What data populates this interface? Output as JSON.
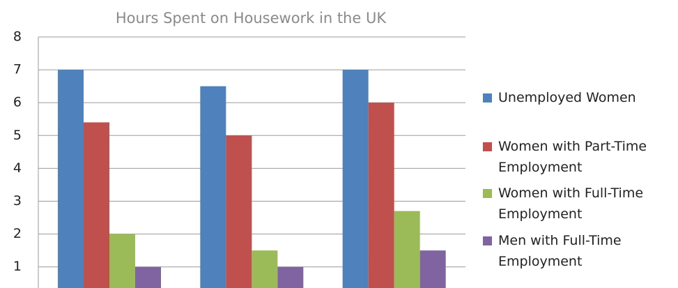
{
  "chart_data": {
    "type": "bar",
    "title": "Hours Spent on Housework in the UK",
    "categories": [
      null,
      null,
      null
    ],
    "series": [
      {
        "name": "Unemployed Women",
        "color": "#4f81bd",
        "values": [
          7,
          6.5,
          7
        ]
      },
      {
        "name": "Women with Part-Time Employment",
        "color": "#c0504d",
        "values": [
          5.4,
          5,
          6
        ]
      },
      {
        "name": "Women with Full-Time Employment",
        "color": "#9bbb59",
        "values": [
          2,
          1.5,
          2.7
        ]
      },
      {
        "name": "Men with Full-Time Employment",
        "color": "#8064a2",
        "values": [
          1,
          1,
          1.5
        ]
      }
    ],
    "ylim": [
      0,
      8
    ],
    "yticks": [
      1,
      2,
      3,
      4,
      5,
      6,
      7,
      8
    ],
    "grid": true,
    "legend": "right"
  }
}
